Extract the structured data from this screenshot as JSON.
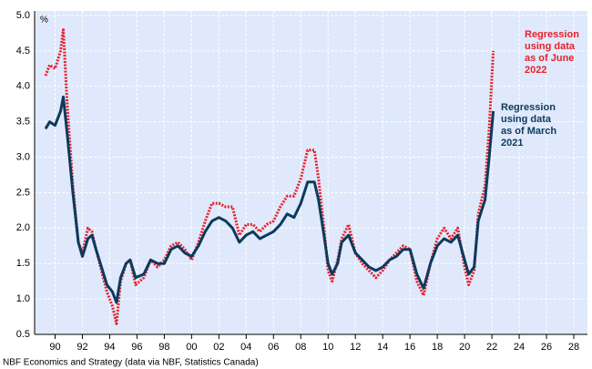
{
  "chart_data": {
    "type": "line",
    "unit_label": "%",
    "source": "NBF Economics and Strategy (data via NBF, Statistics Canada)",
    "x": [
      1989.3,
      1989.6,
      1990.0,
      1990.4,
      1990.6,
      1990.9,
      1991.3,
      1991.7,
      1992.0,
      1992.4,
      1992.7,
      1993.0,
      1993.4,
      1993.8,
      1994.2,
      1994.5,
      1994.8,
      1995.2,
      1995.5,
      1995.9,
      1996.5,
      1997.0,
      1997.5,
      1998.0,
      1998.5,
      1999.0,
      1999.5,
      2000.0,
      2000.5,
      2001.0,
      2001.5,
      2002.0,
      2002.5,
      2003.0,
      2003.5,
      2004.0,
      2004.5,
      2005.0,
      2005.5,
      2006.0,
      2006.5,
      2007.0,
      2007.5,
      2008.0,
      2008.5,
      2009.0,
      2009.3,
      2009.7,
      2010.0,
      2010.3,
      2010.7,
      2011.0,
      2011.5,
      2012.0,
      2012.5,
      2013.0,
      2013.5,
      2014.0,
      2014.5,
      2015.0,
      2015.5,
      2016.0,
      2016.5,
      2017.0,
      2017.5,
      2018.0,
      2018.5,
      2019.0,
      2019.5,
      2020.0,
      2020.3,
      2020.7,
      2021.0,
      2021.5,
      2021.8,
      2022.1
    ],
    "series": [
      {
        "name": "Regression using data as of June 2022",
        "color": "#e8202a",
        "dash": "dotted",
        "values": [
          4.15,
          4.3,
          4.25,
          4.5,
          4.8,
          3.7,
          2.6,
          1.8,
          1.65,
          2.0,
          1.95,
          1.7,
          1.4,
          1.1,
          0.9,
          0.65,
          1.25,
          1.5,
          1.55,
          1.2,
          1.3,
          1.55,
          1.45,
          1.55,
          1.75,
          1.8,
          1.7,
          1.55,
          1.8,
          2.1,
          2.35,
          2.35,
          2.3,
          2.3,
          1.9,
          2.05,
          2.05,
          1.95,
          2.05,
          2.1,
          2.3,
          2.45,
          2.45,
          2.7,
          3.1,
          3.1,
          2.7,
          2.0,
          1.4,
          1.25,
          1.55,
          1.85,
          2.05,
          1.65,
          1.5,
          1.4,
          1.3,
          1.4,
          1.55,
          1.65,
          1.75,
          1.7,
          1.25,
          1.05,
          1.5,
          1.85,
          2.0,
          1.85,
          2.0,
          1.45,
          1.2,
          1.4,
          2.2,
          2.6,
          3.4,
          4.5
        ]
      },
      {
        "name": "Regression using data as of March 2021",
        "color": "#0d3a5c",
        "dash": "solid",
        "values": [
          3.4,
          3.5,
          3.45,
          3.65,
          3.85,
          3.3,
          2.5,
          1.8,
          1.6,
          1.85,
          1.9,
          1.7,
          1.45,
          1.2,
          1.1,
          0.95,
          1.3,
          1.5,
          1.55,
          1.3,
          1.35,
          1.55,
          1.5,
          1.5,
          1.7,
          1.75,
          1.65,
          1.6,
          1.75,
          1.95,
          2.1,
          2.15,
          2.1,
          2.0,
          1.8,
          1.9,
          1.95,
          1.85,
          1.9,
          1.95,
          2.05,
          2.2,
          2.15,
          2.35,
          2.65,
          2.65,
          2.4,
          1.9,
          1.5,
          1.35,
          1.5,
          1.8,
          1.9,
          1.65,
          1.55,
          1.45,
          1.4,
          1.45,
          1.55,
          1.6,
          1.7,
          1.7,
          1.35,
          1.15,
          1.5,
          1.75,
          1.85,
          1.8,
          1.9,
          1.55,
          1.35,
          1.45,
          2.1,
          2.4,
          3.0,
          3.65
        ]
      }
    ],
    "xlim": [
      1988.5,
      2029
    ],
    "xticks": [
      {
        "value": 1990,
        "label": "90"
      },
      {
        "value": 1992,
        "label": "92"
      },
      {
        "value": 1994,
        "label": "94"
      },
      {
        "value": 1996,
        "label": "96"
      },
      {
        "value": 1998,
        "label": "98"
      },
      {
        "value": 2000,
        "label": "00"
      },
      {
        "value": 2002,
        "label": "02"
      },
      {
        "value": 2004,
        "label": "04"
      },
      {
        "value": 2006,
        "label": "06"
      },
      {
        "value": 2008,
        "label": "08"
      },
      {
        "value": 2010,
        "label": "10"
      },
      {
        "value": 2012,
        "label": "12"
      },
      {
        "value": 2014,
        "label": "14"
      },
      {
        "value": 2016,
        "label": "16"
      },
      {
        "value": 2018,
        "label": "18"
      },
      {
        "value": 2020,
        "label": "20"
      },
      {
        "value": 2022,
        "label": "22"
      },
      {
        "value": 2024,
        "label": "24"
      },
      {
        "value": 2026,
        "label": "26"
      },
      {
        "value": 2028,
        "label": "28"
      }
    ],
    "ylim": [
      0.5,
      5.0
    ],
    "yticks": [
      0.5,
      {
        "value": 1,
        "label": "1.0"
      },
      1.5,
      {
        "value": 2,
        "label": "2.0"
      },
      2.5,
      {
        "value": 3,
        "label": "3.0"
      },
      3.5,
      {
        "value": 4,
        "label": "4.0"
      },
      4.5,
      {
        "value": 5,
        "label": "5.0"
      }
    ],
    "grid": true
  }
}
